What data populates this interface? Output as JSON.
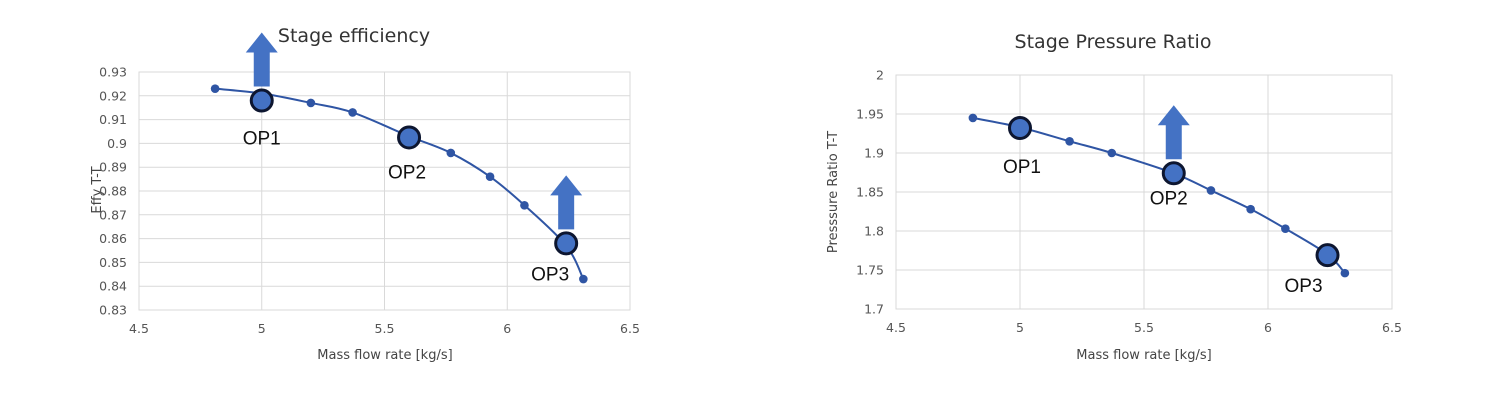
{
  "chart_data": [
    {
      "type": "line",
      "title": "Stage efficiency",
      "xlabel": "Mass flow rate [kg/s]",
      "ylabel": "Effy T-T",
      "xlim": [
        4.5,
        6.5
      ],
      "ylim": [
        0.83,
        0.93
      ],
      "xticks": [
        "4.5",
        "5",
        "5.5",
        "6",
        "6.5"
      ],
      "yticks": [
        "0.83",
        "0.84",
        "0.85",
        "0.86",
        "0.87",
        "0.88",
        "0.89",
        "0.9",
        "0.91",
        "0.92",
        "0.93"
      ],
      "grid": true,
      "series": [
        {
          "x": [
            4.81,
            5.2,
            5.37,
            5.77,
            5.93,
            6.07,
            6.31
          ],
          "y": [
            0.923,
            0.917,
            0.913,
            0.896,
            0.886,
            0.874,
            0.843
          ]
        }
      ],
      "curve": {
        "x": [
          4.81,
          5.0,
          5.2,
          5.37,
          5.6,
          5.77,
          5.93,
          6.07,
          6.24,
          6.31
        ],
        "y": [
          0.923,
          0.921,
          0.917,
          0.913,
          0.903,
          0.896,
          0.886,
          0.874,
          0.857,
          0.843
        ]
      },
      "operating_points": [
        {
          "label": "OP1",
          "x": 5.0,
          "y": 0.918,
          "arrow": "up"
        },
        {
          "label": "OP2",
          "x": 5.6,
          "y": 0.9025
        },
        {
          "label": "OP3",
          "x": 6.24,
          "y": 0.858,
          "arrow": "up"
        }
      ]
    },
    {
      "type": "line",
      "title": "Stage Pressure Ratio",
      "xlabel": "Mass flow rate [kg/s]",
      "ylabel": "Presssure Ratio T-T",
      "xlim": [
        4.5,
        6.5
      ],
      "ylim": [
        1.7,
        2.0
      ],
      "xticks": [
        "4.5",
        "5",
        "5.5",
        "6",
        "6.5"
      ],
      "yticks": [
        "1.7",
        "1.75",
        "1.8",
        "1.85",
        "1.9",
        "1.95",
        "2"
      ],
      "grid": true,
      "series": [
        {
          "x": [
            4.81,
            5.2,
            5.37,
            5.77,
            5.93,
            6.07,
            6.31
          ],
          "y": [
            1.945,
            1.915,
            1.9,
            1.852,
            1.828,
            1.803,
            1.746
          ]
        }
      ],
      "curve": {
        "x": [
          4.81,
          5.0,
          5.2,
          5.37,
          5.62,
          5.77,
          5.93,
          6.07,
          6.24,
          6.31
        ],
        "y": [
          1.945,
          1.933,
          1.915,
          1.9,
          1.874,
          1.852,
          1.828,
          1.803,
          1.77,
          1.746
        ]
      },
      "operating_points": [
        {
          "label": "OP1",
          "x": 5.0,
          "y": 1.932
        },
        {
          "label": "OP2",
          "x": 5.62,
          "y": 1.874,
          "arrow": "up"
        },
        {
          "label": "OP3",
          "x": 6.24,
          "y": 1.769
        }
      ]
    }
  ]
}
